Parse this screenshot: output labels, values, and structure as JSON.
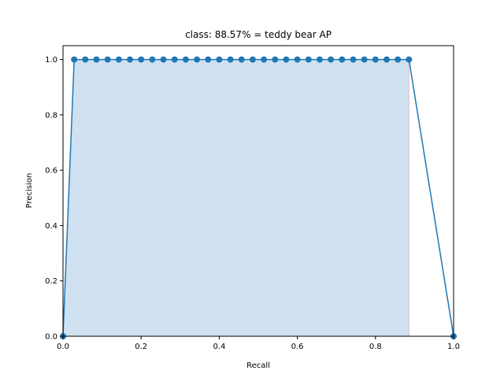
{
  "chart_data": {
    "type": "area",
    "title": "class: 88.57% = teddy bear AP",
    "xlabel": "Recall",
    "ylabel": "Precision",
    "xlim": [
      0.0,
      1.0
    ],
    "ylim": [
      0.0,
      1.05
    ],
    "x_ticks": [
      0.0,
      0.2,
      0.4,
      0.6,
      0.8,
      1.0
    ],
    "x_tick_labels": [
      "0.0",
      "0.2",
      "0.4",
      "0.6",
      "0.8",
      "1.0"
    ],
    "y_ticks": [
      0.0,
      0.2,
      0.4,
      0.6,
      0.8,
      1.0
    ],
    "y_tick_labels": [
      "0.0",
      "0.2",
      "0.4",
      "0.6",
      "0.8",
      "1.0"
    ],
    "grid": false,
    "legend": "none",
    "colors": {
      "line": "#1f77b4",
      "fill": "#cfe1f0",
      "fill_edge": "#f4b6c2"
    },
    "series": [
      {
        "x": [
          0.0,
          0.0286,
          0.0571,
          0.0857,
          0.1143,
          0.1429,
          0.1714,
          0.2,
          0.2286,
          0.2571,
          0.2857,
          0.3143,
          0.3429,
          0.3714,
          0.4,
          0.4286,
          0.4571,
          0.4857,
          0.5143,
          0.5429,
          0.5714,
          0.6,
          0.6286,
          0.6571,
          0.6857,
          0.7143,
          0.7429,
          0.7714,
          0.8,
          0.8286,
          0.8571,
          0.8857,
          1.0
        ],
        "y": [
          0.0,
          1.0,
          1.0,
          1.0,
          1.0,
          1.0,
          1.0,
          1.0,
          1.0,
          1.0,
          1.0,
          1.0,
          1.0,
          1.0,
          1.0,
          1.0,
          1.0,
          1.0,
          1.0,
          1.0,
          1.0,
          1.0,
          1.0,
          1.0,
          1.0,
          1.0,
          1.0,
          1.0,
          1.0,
          1.0,
          1.0,
          1.0,
          0.0
        ]
      }
    ]
  }
}
